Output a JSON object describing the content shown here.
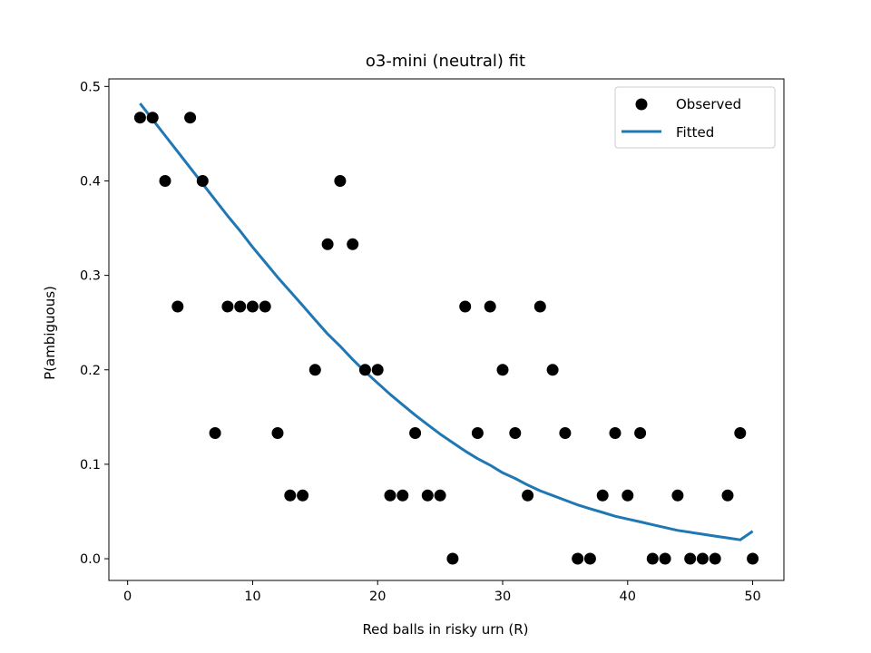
{
  "chart_data": {
    "type": "scatter",
    "title": "o3-mini (neutral) fit",
    "xlabel": "Red balls in risky urn (R)",
    "ylabel": "P(ambiguous)",
    "xlim": [
      -1.5,
      52.5
    ],
    "ylim": [
      -0.023,
      0.508
    ],
    "xticks": [
      0,
      10,
      20,
      30,
      40,
      50
    ],
    "xtick_labels": [
      "0",
      "10",
      "20",
      "30",
      "40",
      "50"
    ],
    "yticks": [
      0.0,
      0.1,
      0.2,
      0.3,
      0.4,
      0.5
    ],
    "ytick_labels": [
      "0.0",
      "0.1",
      "0.2",
      "0.3",
      "0.4",
      "0.5"
    ],
    "grid": false,
    "legend_position": "top-right",
    "series": [
      {
        "name": "Observed",
        "kind": "scatter",
        "color": "#000000",
        "x": [
          1,
          2,
          3,
          4,
          5,
          6,
          7,
          8,
          9,
          10,
          11,
          12,
          13,
          14,
          15,
          16,
          17,
          18,
          19,
          20,
          21,
          22,
          23,
          24,
          25,
          26,
          27,
          28,
          29,
          30,
          31,
          32,
          33,
          34,
          35,
          36,
          37,
          38,
          39,
          40,
          41,
          42,
          43,
          44,
          45,
          46,
          47,
          48,
          49,
          50
        ],
        "y": [
          0.467,
          0.467,
          0.4,
          0.267,
          0.467,
          0.4,
          0.133,
          0.267,
          0.267,
          0.267,
          0.267,
          0.133,
          0.067,
          0.067,
          0.2,
          0.333,
          0.4,
          0.333,
          0.2,
          0.2,
          0.067,
          0.067,
          0.133,
          0.067,
          0.067,
          0.0,
          0.267,
          0.133,
          0.267,
          0.2,
          0.133,
          0.067,
          0.267,
          0.2,
          0.133,
          0.0,
          0.0,
          0.067,
          0.133,
          0.067,
          0.133,
          0.0,
          0.0,
          0.067,
          0.0,
          0.0,
          0.0,
          0.067,
          0.133,
          0.0
        ]
      },
      {
        "name": "Fitted",
        "kind": "line",
        "color": "#1f77b4",
        "x": [
          1,
          2,
          3,
          4,
          5,
          6,
          7,
          8,
          9,
          10,
          11,
          12,
          13,
          14,
          15,
          16,
          17,
          18,
          19,
          20,
          21,
          22,
          23,
          24,
          25,
          26,
          27,
          28,
          29,
          30,
          31,
          32,
          33,
          34,
          35,
          36,
          37,
          38,
          39,
          40,
          41,
          42,
          43,
          44,
          45,
          46,
          47,
          48,
          49,
          50
        ],
        "y": [
          0.482,
          0.465,
          0.448,
          0.431,
          0.414,
          0.397,
          0.38,
          0.363,
          0.347,
          0.33,
          0.314,
          0.298,
          0.283,
          0.268,
          0.253,
          0.238,
          0.225,
          0.211,
          0.198,
          0.186,
          0.174,
          0.163,
          0.152,
          0.142,
          0.132,
          0.123,
          0.114,
          0.106,
          0.099,
          0.091,
          0.085,
          0.078,
          0.072,
          0.067,
          0.062,
          0.057,
          0.053,
          0.049,
          0.045,
          0.042,
          0.039,
          0.036,
          0.033,
          0.03,
          0.028,
          0.026,
          0.024,
          0.022,
          0.02,
          0.029
        ]
      }
    ]
  }
}
